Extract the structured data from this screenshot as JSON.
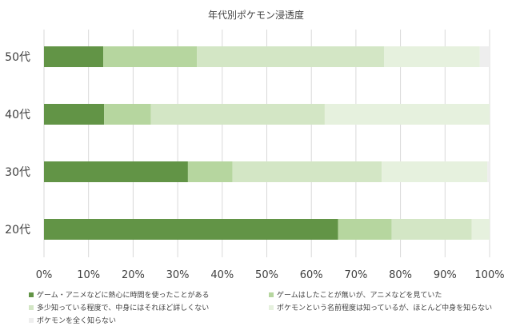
{
  "chart_data": {
    "type": "bar",
    "orientation": "horizontal",
    "stacked": "100%",
    "title": "年代別ポケモン浸透度",
    "categories": [
      "50代",
      "40代",
      "30代",
      "20代"
    ],
    "series": [
      {
        "name": "ゲーム・アニメなどに熱心に時間を使ったことがある",
        "color": "#629446",
        "values": [
          13.3,
          13.5,
          32.3,
          66.0
        ]
      },
      {
        "name": "ゲームはしたことが無いが、アニメなどを見ていた",
        "color": "#b6d69f",
        "values": [
          21.0,
          10.5,
          10.0,
          12.0
        ]
      },
      {
        "name": "多少知っている程度で、中身にはそれほど詳しくない",
        "color": "#d3e6c5",
        "values": [
          42.0,
          39.0,
          33.5,
          18.0
        ]
      },
      {
        "name": "ポケモンという名前程度は知っているが、ほとんど中身を知らない",
        "color": "#e6f1de",
        "values": [
          21.5,
          37.0,
          23.7,
          4.0
        ]
      },
      {
        "name": "ポケモンを全く知らない",
        "color": "#eeeeee",
        "values": [
          2.2,
          0,
          0.5,
          0
        ]
      }
    ],
    "x_ticks": [
      "0%",
      "10%",
      "20%",
      "30%",
      "40%",
      "50%",
      "60%",
      "70%",
      "80%",
      "90%",
      "100%"
    ],
    "xlim": [
      0,
      100
    ],
    "grid": true,
    "legend_position": "bottom"
  }
}
